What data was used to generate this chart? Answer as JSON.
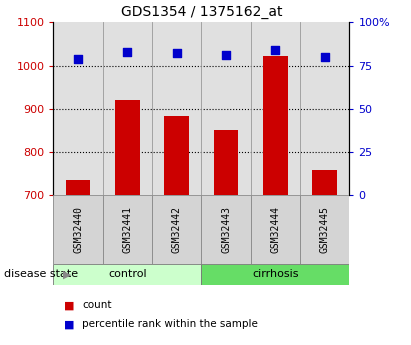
{
  "title": "GDS1354 / 1375162_at",
  "samples": [
    "GSM32440",
    "GSM32441",
    "GSM32442",
    "GSM32443",
    "GSM32444",
    "GSM32445"
  ],
  "counts": [
    735,
    921,
    883,
    851,
    1022,
    757
  ],
  "percentiles": [
    79,
    83,
    82,
    81,
    84,
    80
  ],
  "ylim_left": [
    700,
    1100
  ],
  "ylim_right": [
    0,
    100
  ],
  "yticks_left": [
    700,
    800,
    900,
    1000,
    1100
  ],
  "yticks_right": [
    0,
    25,
    50,
    75,
    100
  ],
  "ytick_right_labels": [
    "0",
    "25",
    "50",
    "75",
    "100%"
  ],
  "bar_color": "#cc0000",
  "scatter_color": "#0000cc",
  "control_color": "#ccffcc",
  "cirrhosis_color": "#66dd66",
  "tick_color_left": "#cc0000",
  "tick_color_right": "#0000cc",
  "bg_color": "#ffffff",
  "plot_bg_color": "#e0e0e0",
  "grid_lines": [
    800,
    900,
    1000
  ],
  "bar_width": 0.5,
  "disease_state_label": "disease state",
  "legend_count_label": "count",
  "legend_percentile_label": "percentile rank within the sample",
  "n_control": 3,
  "n_cirrhosis": 3
}
